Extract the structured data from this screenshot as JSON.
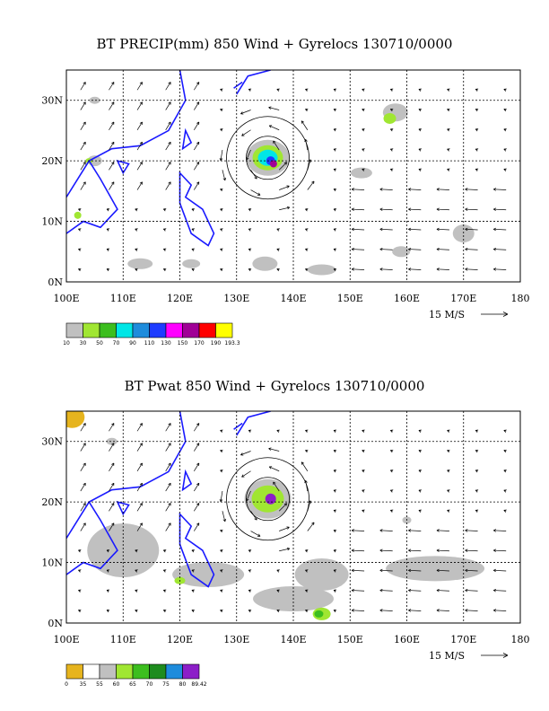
{
  "chart_data": [
    {
      "type": "heatmap",
      "title": "BT PRECIP(mm) 850 Wind + Gyrelocs 130710/0000",
      "x_ticks": [
        "100E",
        "110E",
        "120E",
        "130E",
        "140E",
        "150E",
        "160E",
        "170E",
        "180"
      ],
      "y_ticks": [
        "0N",
        "10N",
        "20N",
        "30N"
      ],
      "xlim": [
        100,
        180
      ],
      "ylim": [
        0,
        35
      ],
      "grid": true,
      "vector_scale_label": "15 M/S",
      "legend": {
        "values": [
          "10",
          "30",
          "50",
          "70",
          "90",
          "110",
          "130",
          "150",
          "170",
          "190",
          "193.3"
        ],
        "colors": [
          "#c0c0c0",
          "#a0e632",
          "#3cbe1e",
          "#00e6e6",
          "#1e8cdc",
          "#1e3cff",
          "#ff00ff",
          "#a00096",
          "#ff0000",
          "#ffff00"
        ]
      },
      "cyclone_center": {
        "lon": 135.5,
        "lat": 20.5
      }
    },
    {
      "type": "heatmap",
      "title": "BT Pwat 850 Wind + Gyrelocs 130710/0000",
      "x_ticks": [
        "100E",
        "110E",
        "120E",
        "130E",
        "140E",
        "150E",
        "160E",
        "170E",
        "180"
      ],
      "y_ticks": [
        "0N",
        "10N",
        "20N",
        "30N"
      ],
      "xlim": [
        100,
        180
      ],
      "ylim": [
        0,
        35
      ],
      "grid": true,
      "vector_scale_label": "15 M/S",
      "legend": {
        "values": [
          "0",
          "35",
          "55",
          "60",
          "65",
          "70",
          "75",
          "80",
          "89.42"
        ],
        "colors": [
          "#e6b41e",
          "#ffffff",
          "#c0c0c0",
          "#a0e632",
          "#3cbe1e",
          "#1e8c1e",
          "#1e8cdc",
          "#8c1ec8"
        ]
      },
      "cyclone_center": {
        "lon": 135.5,
        "lat": 20.5
      }
    }
  ]
}
